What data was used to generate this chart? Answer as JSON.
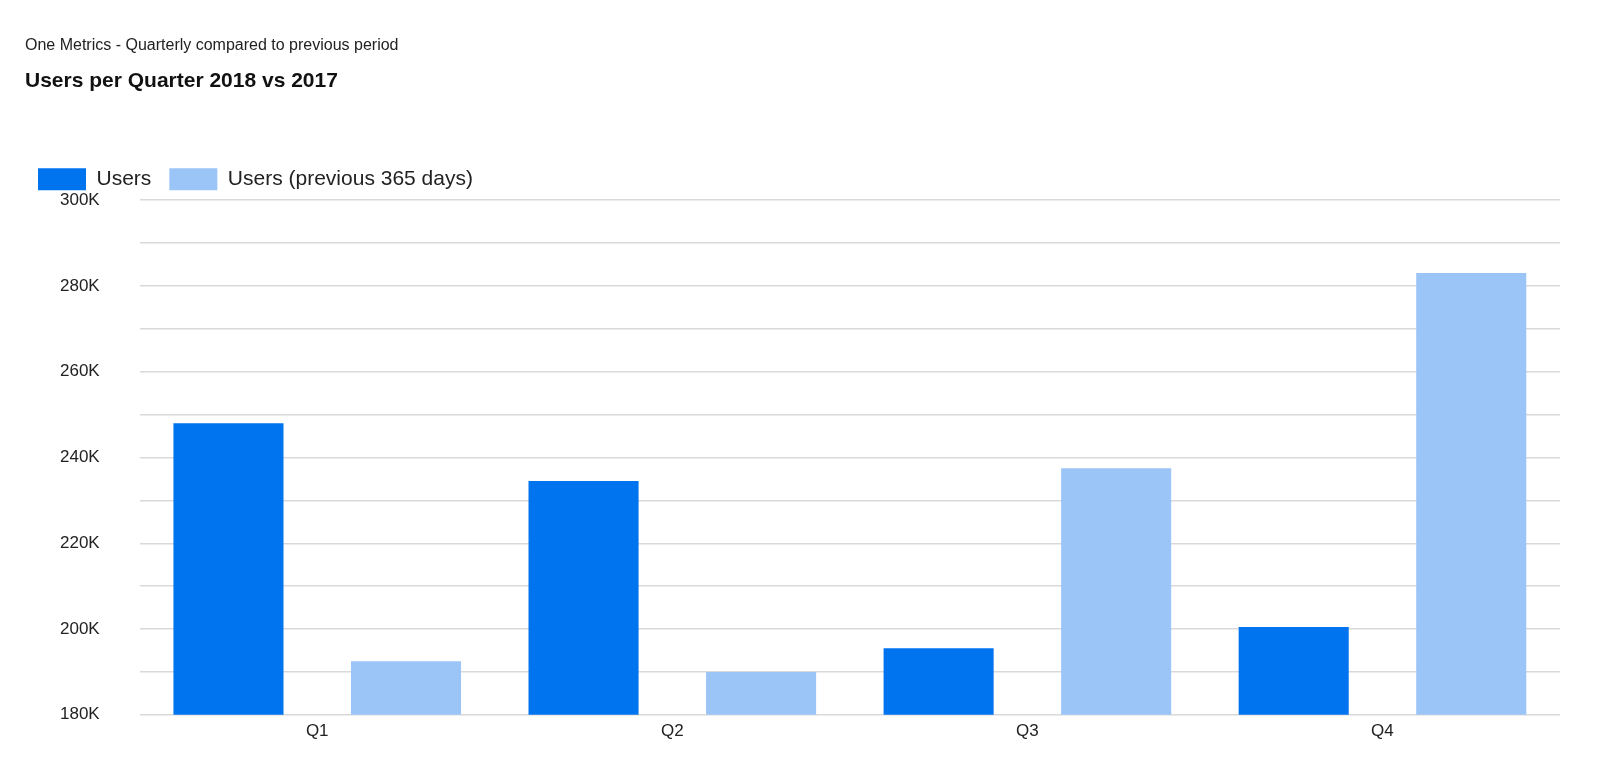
{
  "chart_data": {
    "type": "bar",
    "subtitle": "One Metrics - Quarterly compared to previous period",
    "title": "Users per Quarter 2018 vs 2017",
    "categories": [
      "Q1",
      "Q2",
      "Q3",
      "Q4"
    ],
    "series": [
      {
        "name": "Users",
        "color": "#0073ee",
        "values": [
          248000,
          234500,
          195500,
          200500
        ]
      },
      {
        "name": "Users (previous 365 days)",
        "color": "#9cc5f7",
        "values": [
          192500,
          190000,
          237500,
          283000
        ]
      }
    ],
    "ylim": [
      180000,
      300000
    ],
    "yticks": [
      {
        "value": 180000,
        "label": "180K"
      },
      {
        "value": 190000,
        "label": null
      },
      {
        "value": 200000,
        "label": "200K"
      },
      {
        "value": 210000,
        "label": null
      },
      {
        "value": 220000,
        "label": "220K"
      },
      {
        "value": 230000,
        "label": null
      },
      {
        "value": 240000,
        "label": "240K"
      },
      {
        "value": 250000,
        "label": null
      },
      {
        "value": 260000,
        "label": "260K"
      },
      {
        "value": 270000,
        "label": null
      },
      {
        "value": 280000,
        "label": "280K"
      },
      {
        "value": 290000,
        "label": null
      },
      {
        "value": 300000,
        "label": "300K"
      }
    ],
    "grid": "y",
    "legend": "top left"
  }
}
